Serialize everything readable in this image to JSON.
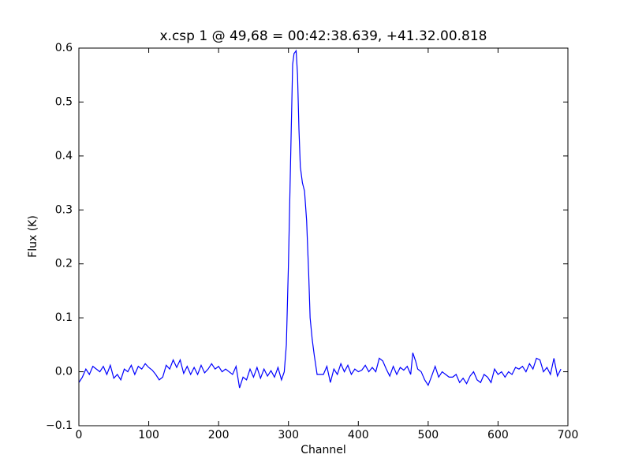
{
  "chart_data": {
    "type": "line",
    "title": "x.csp 1 @ 49,68 = 00:42:38.639, +41.32.00.818",
    "x_label": "Channel",
    "y_label": "Flux (K)",
    "xlim": [
      0,
      700
    ],
    "ylim": [
      -0.1,
      0.6
    ],
    "xticks": [
      0,
      100,
      200,
      300,
      400,
      500,
      600,
      700
    ],
    "yticks": [
      {
        "value": -0.1,
        "label": "−0.1"
      },
      {
        "value": 0.0,
        "label": "0.0"
      },
      0.1,
      0.2,
      0.3,
      0.4,
      0.5,
      0.6
    ],
    "series": [
      {
        "color": "#0000ff",
        "x": [
          0,
          5,
          10,
          15,
          20,
          25,
          30,
          35,
          40,
          45,
          50,
          55,
          60,
          65,
          70,
          75,
          80,
          85,
          90,
          95,
          100,
          105,
          110,
          115,
          120,
          125,
          130,
          135,
          140,
          145,
          150,
          155,
          160,
          165,
          170,
          175,
          180,
          185,
          190,
          195,
          200,
          205,
          210,
          215,
          220,
          225,
          230,
          235,
          240,
          245,
          250,
          255,
          260,
          265,
          270,
          275,
          280,
          285,
          290,
          294,
          297,
          300,
          304,
          306,
          308,
          311,
          313,
          315,
          317,
          320,
          323,
          326,
          329,
          331,
          334,
          337,
          341,
          345,
          350,
          355,
          360,
          365,
          370,
          375,
          380,
          385,
          390,
          395,
          400,
          405,
          410,
          415,
          420,
          425,
          430,
          435,
          440,
          445,
          450,
          455,
          460,
          465,
          470,
          475,
          478,
          482,
          485,
          490,
          495,
          500,
          505,
          510,
          515,
          520,
          525,
          530,
          535,
          540,
          545,
          550,
          555,
          560,
          565,
          570,
          575,
          580,
          585,
          590,
          595,
          600,
          605,
          610,
          615,
          620,
          625,
          630,
          635,
          640,
          645,
          650,
          655,
          660,
          665,
          670,
          675,
          680,
          685,
          690
        ],
        "values": [
          -0.02,
          -0.01,
          0.005,
          -0.005,
          0.01,
          0.005,
          0.0,
          0.01,
          -0.005,
          0.012,
          -0.012,
          -0.005,
          -0.015,
          0.005,
          0.0,
          0.012,
          -0.005,
          0.01,
          0.005,
          0.015,
          0.008,
          0.003,
          -0.005,
          -0.015,
          -0.01,
          0.012,
          0.005,
          0.022,
          0.008,
          0.022,
          -0.003,
          0.01,
          -0.005,
          0.008,
          -0.005,
          0.012,
          -0.002,
          0.005,
          0.015,
          0.005,
          0.01,
          0.0,
          0.005,
          0.0,
          -0.005,
          0.01,
          -0.03,
          -0.01,
          -0.015,
          0.005,
          -0.01,
          0.008,
          -0.012,
          0.005,
          -0.008,
          0.002,
          -0.01,
          0.008,
          -0.015,
          0.0,
          0.05,
          0.2,
          0.45,
          0.57,
          0.59,
          0.595,
          0.55,
          0.45,
          0.38,
          0.35,
          0.335,
          0.28,
          0.18,
          0.1,
          0.06,
          0.03,
          -0.005,
          -0.005,
          -0.005,
          0.01,
          -0.02,
          0.005,
          -0.005,
          0.015,
          0.0,
          0.012,
          -0.005,
          0.005,
          0.0,
          0.003,
          0.012,
          0.0,
          0.008,
          0.0,
          0.025,
          0.02,
          0.005,
          -0.008,
          0.01,
          -0.005,
          0.008,
          0.003,
          0.01,
          -0.005,
          0.035,
          0.02,
          0.005,
          0.0,
          -0.015,
          -0.025,
          -0.008,
          0.01,
          -0.01,
          0.0,
          -0.005,
          -0.01,
          -0.01,
          -0.005,
          -0.02,
          -0.012,
          -0.022,
          -0.008,
          0.0,
          -0.015,
          -0.02,
          -0.005,
          -0.01,
          -0.02,
          0.005,
          -0.005,
          0.0,
          -0.01,
          0.0,
          -0.005,
          0.008,
          0.005,
          0.01,
          0.0,
          0.015,
          0.005,
          0.025,
          0.022,
          0.0,
          0.008,
          -0.005,
          0.025,
          -0.008,
          0.005
        ]
      }
    ]
  }
}
